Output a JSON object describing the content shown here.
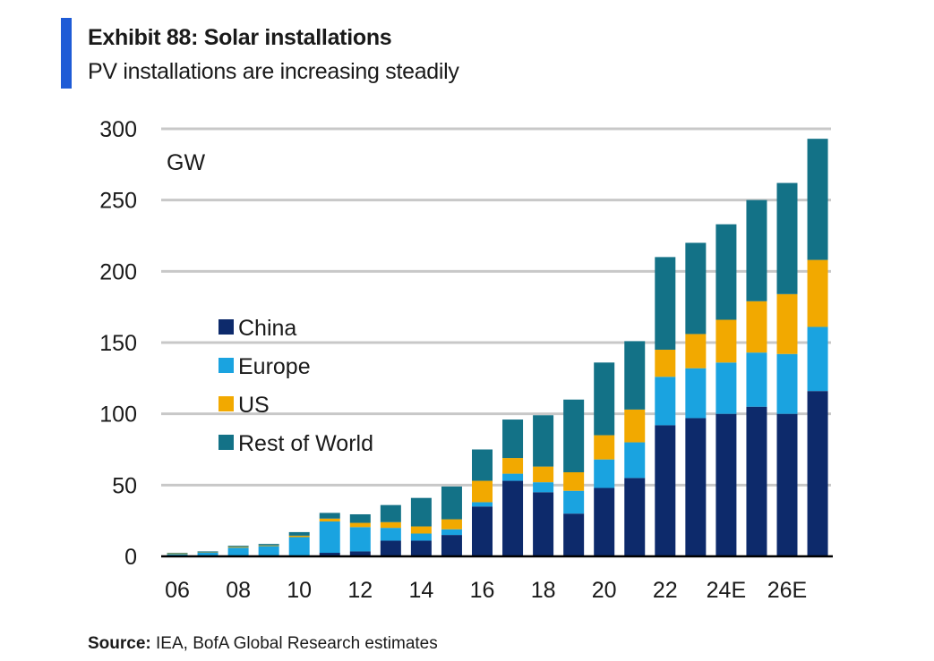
{
  "header": {
    "title": "Exhibit 88: Solar installations",
    "subtitle": "PV installations are increasing steadily"
  },
  "footer": {
    "source_label": "Source:",
    "source_text": "IEA, BofA Global Research estimates"
  },
  "colors": {
    "accent": "#1e5bd6",
    "China": "#0d2a6b",
    "Europe": "#1aa3e0",
    "US": "#f2a900",
    "Rest of World": "#137287",
    "grid": "#c8c8c8",
    "axis": "#000000"
  },
  "chart_data": {
    "type": "bar",
    "stacked": true,
    "unit_label": "GW",
    "ylim": [
      0,
      300
    ],
    "yticks": [
      0,
      50,
      100,
      150,
      200,
      250,
      300
    ],
    "grid": true,
    "legend_position": "middle-left",
    "categories": [
      "06",
      "07",
      "08",
      "09",
      "10",
      "11",
      "12",
      "13",
      "14",
      "15",
      "16",
      "17",
      "18",
      "19",
      "20",
      "21",
      "22",
      "23",
      "24E",
      "25E",
      "26E",
      "27E"
    ],
    "x_tick_labels": [
      "06",
      "08",
      "10",
      "12",
      "14",
      "16",
      "18",
      "20",
      "22",
      "24E",
      "26E"
    ],
    "series": [
      {
        "name": "China",
        "values": [
          0.1,
          0.1,
          0.1,
          0.2,
          0.5,
          2.5,
          3.5,
          11,
          11,
          15,
          35,
          53,
          45,
          30,
          48,
          55,
          92,
          97,
          100,
          105,
          100,
          116
        ]
      },
      {
        "name": "Europe",
        "values": [
          1.5,
          2.5,
          6,
          7,
          13,
          22,
          17,
          9,
          5,
          4,
          3,
          5,
          7,
          16,
          20,
          25,
          34,
          35,
          36,
          38,
          42,
          45
        ]
      },
      {
        "name": "US",
        "values": [
          0.5,
          0.2,
          0.5,
          0.5,
          1,
          2,
          3,
          4,
          5,
          7,
          15,
          11,
          11,
          13,
          17,
          23,
          19,
          24,
          30,
          36,
          42,
          47
        ]
      },
      {
        "name": "Rest of World",
        "values": [
          0.4,
          0.7,
          0.8,
          1,
          2.5,
          4,
          6,
          12,
          20,
          23,
          22,
          27,
          36,
          51,
          51,
          48,
          65,
          64,
          67,
          71,
          78,
          85
        ]
      }
    ]
  }
}
